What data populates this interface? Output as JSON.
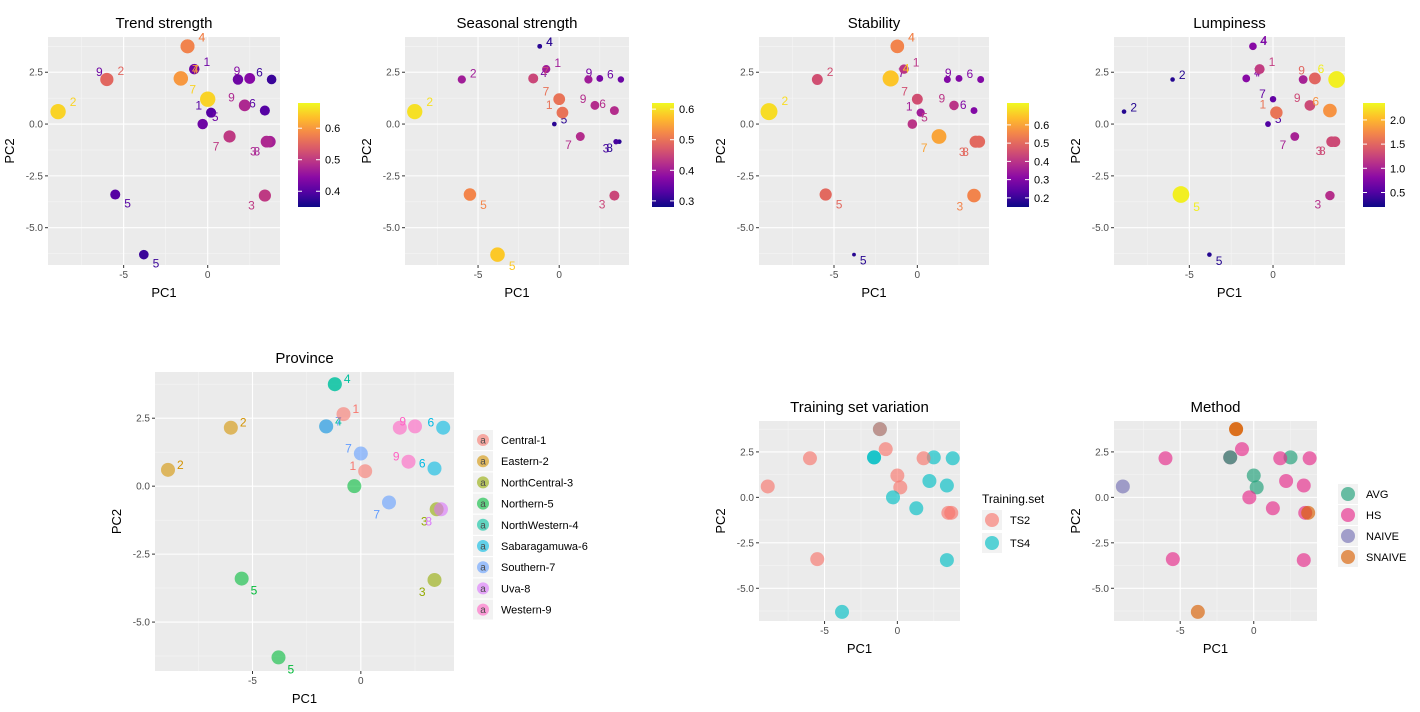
{
  "ptsX": [
    -8.9,
    -6.0,
    -5.5,
    -1.6,
    -1.2,
    -1.6,
    -0.8,
    -1.2,
    -3.8,
    0.2,
    1.3,
    0.0,
    -0.3,
    2.2,
    2.5,
    3.4,
    3.8,
    3.5,
    3.7,
    3.4,
    1.8
  ],
  "ptsY": [
    0.6,
    2.15,
    -3.4,
    2.2,
    3.75,
    2.2,
    2.65,
    3.75,
    -6.3,
    0.55,
    -0.6,
    1.2,
    0.0,
    0.9,
    2.2,
    0.65,
    2.15,
    -0.85,
    -0.85,
    -3.45,
    2.15
  ],
  "ptsT": [
    "2",
    "2",
    "5",
    "4",
    "4",
    "7",
    "1",
    "4",
    "5",
    "1",
    "7",
    "7",
    "5",
    "9",
    "9",
    "6",
    "6",
    "3",
    "8",
    "3",
    "9"
  ],
  "ptsP": [
    1,
    1,
    3,
    4,
    4,
    6,
    0,
    4,
    3,
    0,
    6,
    6,
    3,
    8,
    8,
    5,
    5,
    2,
    7,
    2,
    8
  ],
  "ptsTS": [
    0,
    0,
    0,
    1,
    1,
    1,
    0,
    0,
    1,
    0,
    1,
    0,
    1,
    1,
    1,
    1,
    1,
    0,
    0,
    1,
    0
  ],
  "ptsM": [
    2,
    1,
    1,
    1,
    3,
    0,
    1,
    3,
    3,
    0,
    1,
    0,
    1,
    1,
    0,
    1,
    1,
    1,
    3,
    1,
    1
  ],
  "ptsK": [
    true,
    true,
    true,
    true,
    true,
    true,
    true,
    false,
    true,
    true,
    true,
    true,
    false,
    true,
    true,
    true,
    true,
    true,
    true,
    true,
    false
  ],
  "chart_data": [
    {
      "type": "scatter",
      "title": "Trend strength",
      "xlabel": "PC1",
      "ylabel": "PC2",
      "x_ticks": [
        "-5",
        "0"
      ],
      "y_ticks": [
        "2.5",
        "0.0",
        "-2.5",
        "-5.0"
      ],
      "colorbar": {
        "ticks": [
          "0.6",
          "0.5",
          "0.4"
        ]
      },
      "color_values": [
        0.65,
        0.55,
        0.4,
        0.6,
        0.58,
        0.6,
        0.42,
        0.58,
        0.38,
        0.4,
        0.5,
        0.65,
        0.42,
        0.48,
        0.44,
        0.4,
        0.38,
        0.48,
        0.47,
        0.5,
        0.42
      ],
      "size_values": [
        0.65,
        0.55,
        0.4,
        0.6,
        0.58,
        0.6,
        0.42,
        0.58,
        0.38,
        0.4,
        0.5,
        0.65,
        0.42,
        0.48,
        0.44,
        0.4,
        0.38,
        0.48,
        0.47,
        0.5,
        0.42
      ]
    },
    {
      "type": "scatter",
      "title": "Seasonal strength",
      "xlabel": "PC1",
      "ylabel": "PC2",
      "x_ticks": [
        "-5",
        "0"
      ],
      "y_ticks": [
        "2.5",
        "0.0",
        "-2.5",
        "-5.0"
      ],
      "colorbar": {
        "ticks": [
          "0.6",
          "0.5",
          "0.4",
          "0.3"
        ]
      },
      "color_values": [
        0.6,
        0.4,
        0.52,
        0.35,
        0.3,
        0.45,
        0.4,
        0.3,
        0.58,
        0.5,
        0.42,
        0.5,
        0.3,
        0.42,
        0.36,
        0.42,
        0.35,
        0.32,
        0.3,
        0.45,
        0.4
      ],
      "size_values": [
        0.6,
        0.4,
        0.52,
        0.35,
        0.3,
        0.45,
        0.4,
        0.3,
        0.58,
        0.5,
        0.42,
        0.5,
        0.3,
        0.42,
        0.36,
        0.42,
        0.35,
        0.32,
        0.3,
        0.45,
        0.4
      ]
    },
    {
      "type": "scatter",
      "title": "Stability",
      "xlabel": "PC1",
      "ylabel": "PC2",
      "x_ticks": [
        "-5",
        "0"
      ],
      "y_ticks": [
        "2.5",
        "0.0",
        "-2.5",
        "-5.0"
      ],
      "colorbar": {
        "ticks": [
          "0.6",
          "0.5",
          "0.4",
          "0.3",
          "0.2"
        ]
      },
      "color_values": [
        0.68,
        0.45,
        0.5,
        0.65,
        0.55,
        0.3,
        0.4,
        0.55,
        0.18,
        0.35,
        0.6,
        0.45,
        0.4,
        0.4,
        0.3,
        0.3,
        0.3,
        0.5,
        0.5,
        0.55,
        0.3
      ],
      "size_values": [
        0.68,
        0.45,
        0.5,
        0.65,
        0.55,
        0.3,
        0.4,
        0.55,
        0.18,
        0.35,
        0.6,
        0.45,
        0.4,
        0.4,
        0.3,
        0.3,
        0.3,
        0.5,
        0.5,
        0.55,
        0.3
      ]
    },
    {
      "type": "scatter",
      "title": "Lumpiness",
      "xlabel": "PC1",
      "ylabel": "PC2",
      "x_ticks": [
        "-5",
        "0"
      ],
      "y_ticks": [
        "2.5",
        "0.0",
        "-2.5",
        "-5.0"
      ],
      "colorbar": {
        "ticks": [
          "2.0",
          "1.5",
          "1.0",
          "0.5"
        ]
      },
      "color_values": [
        0.3,
        0.3,
        2.3,
        0.8,
        0.6,
        0.8,
        1.2,
        0.8,
        0.3,
        1.6,
        1.0,
        0.6,
        0.5,
        1.3,
        1.5,
        1.8,
        2.3,
        1.3,
        1.3,
        1.1,
        1.0
      ],
      "size_values": [
        0.3,
        0.3,
        2.3,
        0.8,
        0.6,
        0.8,
        1.2,
        0.8,
        0.3,
        1.6,
        1.0,
        0.6,
        0.5,
        1.3,
        1.5,
        1.8,
        2.3,
        1.3,
        1.3,
        1.1,
        1.0
      ]
    },
    {
      "type": "scatter",
      "title": "Province",
      "xlabel": "PC1",
      "ylabel": "PC2",
      "x_ticks": [
        "-5",
        "0"
      ],
      "y_ticks": [
        "2.5",
        "0.0",
        "-2.5",
        "-5.0"
      ],
      "legend": [
        "Central-1",
        "Eastern-2",
        "NorthCentral-3",
        "Northern-5",
        "NorthWestern-4",
        "Sabaragamuwa-6",
        "Southern-7",
        "Uva-8",
        "Western-9"
      ],
      "legend_colors": [
        "#F8766D",
        "#D39200",
        "#93AA00",
        "#00BA38",
        "#00C19F",
        "#00B9E3",
        "#619CFF",
        "#DB72FB",
        "#FF61C3"
      ],
      "legend_key_glyph": "a"
    },
    {
      "type": "scatter",
      "title": "Training set variation",
      "xlabel": "PC1",
      "ylabel": "PC2",
      "x_ticks": [
        "-5",
        "0"
      ],
      "y_ticks": [
        "2.5",
        "0.0",
        "-2.5",
        "-5.0"
      ],
      "legend_title": "Training.set",
      "legend": [
        "TS2",
        "TS4"
      ],
      "legend_colors": [
        "#F8766D",
        "#00BFC4"
      ]
    },
    {
      "type": "scatter",
      "title": "Method",
      "xlabel": "PC1",
      "ylabel": "PC2",
      "x_ticks": [
        "-5",
        "0"
      ],
      "y_ticks": [
        "2.5",
        "0.0",
        "-2.5",
        "-5.0"
      ],
      "legend": [
        "AVG",
        "HS",
        "NAIVE",
        "SNAIVE"
      ],
      "legend_colors": [
        "#1B9E77",
        "#E7298A",
        "#7570B3",
        "#D95F02"
      ]
    }
  ]
}
